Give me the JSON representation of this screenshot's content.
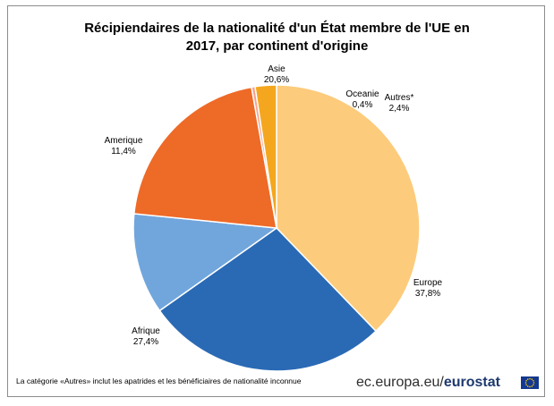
{
  "chart_data": {
    "type": "pie",
    "title_line1": "Récipiendaires de la nationalité d'un État membre de l'UE en",
    "title_line2": "2017, par continent d'origine",
    "slices": [
      {
        "name": "Europe",
        "label": "37,8%",
        "value": 37.8,
        "color": "#FCCB7B"
      },
      {
        "name": "Afrique",
        "label": "27,4%",
        "value": 27.4,
        "color": "#2A6AB5"
      },
      {
        "name": "Amerique",
        "label": "11,4%",
        "value": 11.4,
        "color": "#71A6DD"
      },
      {
        "name": "Asie",
        "label": "20,6%",
        "value": 20.6,
        "color": "#EE6A27"
      },
      {
        "name": "Oceanie",
        "label": "0,4%",
        "value": 0.4,
        "color": "#F7A28C"
      },
      {
        "name": "Autres*",
        "label": "2,4%",
        "value": 2.4,
        "color": "#F4A71E"
      }
    ]
  },
  "footnote": "La catégorie «Autres» inclut les apatrides et les bénéficiaires de nationalité inconnue",
  "brand": {
    "prefix": "ec.europa.eu/",
    "name": "eurostat"
  }
}
